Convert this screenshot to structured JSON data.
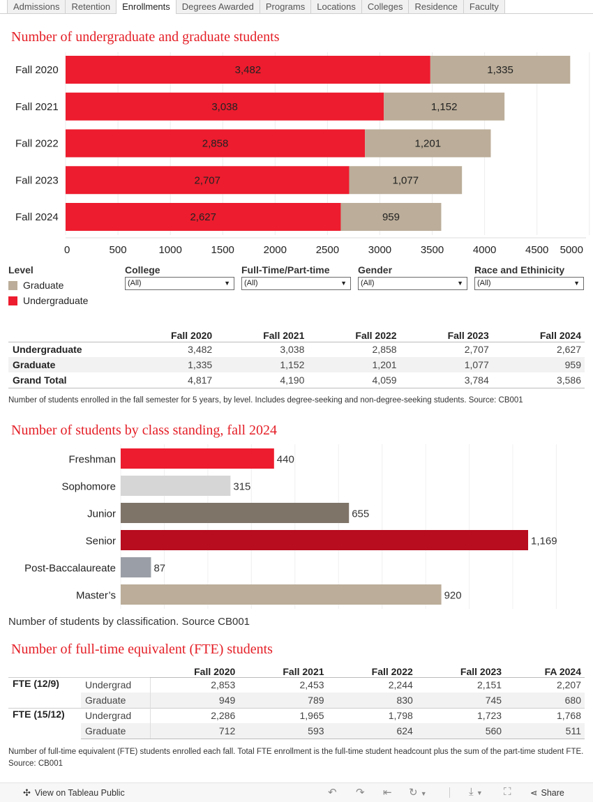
{
  "tabs": [
    {
      "label": "Admissions"
    },
    {
      "label": "Retention"
    },
    {
      "label": "Enrollments",
      "active": true
    },
    {
      "label": "Degrees Awarded"
    },
    {
      "label": "Programs"
    },
    {
      "label": "Locations"
    },
    {
      "label": "Colleges"
    },
    {
      "label": "Residence"
    },
    {
      "label": "Faculty"
    }
  ],
  "colors": {
    "accent": "#e41e26",
    "undergraduate": "#ed1c2e",
    "graduate": "#bbad99",
    "freshman": "#ed1c2e",
    "sophomore": "#d6d6d6",
    "junior": "#7f7468",
    "senior": "#b80c1f",
    "post_bacc": "#9a9ea6",
    "masters": "#bbad99"
  },
  "chart1": {
    "title": "Number of undergraduate and graduate students"
  },
  "legend": {
    "title": "Level",
    "items": [
      {
        "label": "Graduate",
        "color": "#bbad99"
      },
      {
        "label": "Undergraduate",
        "color": "#ed1c2e"
      }
    ]
  },
  "filters": [
    {
      "label": "College",
      "value": "(All)"
    },
    {
      "label": "Full-Time/Part-time",
      "value": "(All)"
    },
    {
      "label": "Gender",
      "value": "(All)"
    },
    {
      "label": "Race and Ethinicity",
      "value": "(All)"
    }
  ],
  "table1": {
    "columns": [
      "Fall 2020",
      "Fall 2021",
      "Fall 2022",
      "Fall 2023",
      "Fall 2024"
    ],
    "rows": [
      {
        "label": "Undergraduate",
        "values": [
          "3,482",
          "3,038",
          "2,858",
          "2,707",
          "2,627"
        ]
      },
      {
        "label": "Graduate",
        "values": [
          "1,335",
          "1,152",
          "1,201",
          "1,077",
          "959"
        ]
      },
      {
        "label": "Grand Total",
        "values": [
          "4,817",
          "4,190",
          "4,059",
          "3,784",
          "3,586"
        ]
      }
    ],
    "note": "Number of students enrolled in the fall semester for 5 years, by level. Includes degree-seeking and non-degree-seeking students. Source: CB001"
  },
  "chart2": {
    "title": "Number of students by class standing, fall 2024",
    "note": "Number of students by classification. Source CB001"
  },
  "chart3": {
    "title": "Number of full-time equivalent (FTE) students"
  },
  "table2": {
    "columns": [
      "Fall 2020",
      "Fall 2021",
      "Fall 2022",
      "Fall 2023",
      "FA 2024"
    ],
    "groups": [
      {
        "label": "FTE (12/9)",
        "rows": [
          {
            "label": "Undergrad",
            "values": [
              "2,853",
              "2,453",
              "2,244",
              "2,151",
              "2,207"
            ]
          },
          {
            "label": "Graduate",
            "values": [
              "949",
              "789",
              "830",
              "745",
              "680"
            ]
          }
        ]
      },
      {
        "label": "FTE (15/12)",
        "rows": [
          {
            "label": "Undergrad",
            "values": [
              "2,286",
              "1,965",
              "1,798",
              "1,723",
              "1,768"
            ]
          },
          {
            "label": "Graduate",
            "values": [
              "712",
              "593",
              "624",
              "560",
              "511"
            ]
          }
        ]
      }
    ],
    "note": "Number of full-time equivalent (FTE) students enrolled each fall. Total FTE enrollment is the full-time student headcount plus the sum of the part-time student FTE. Source: CB001"
  },
  "footer": {
    "view_label": "View on Tableau Public",
    "share_label": "Share",
    "icons": [
      "undo-icon",
      "redo-icon",
      "revert-icon",
      "refresh-icon",
      "download-icon",
      "fullscreen-icon",
      "share-icon"
    ]
  },
  "chart_data": [
    {
      "type": "bar",
      "orientation": "horizontal",
      "stacked": true,
      "title": "Number of undergraduate and graduate students",
      "categories": [
        "Fall 2020",
        "Fall 2021",
        "Fall 2022",
        "Fall 2023",
        "Fall 2024"
      ],
      "series": [
        {
          "name": "Undergraduate",
          "values": [
            3482,
            3038,
            2858,
            2707,
            2627
          ],
          "labels": [
            "3,482",
            "3,038",
            "2,858",
            "2,707",
            "2,627"
          ]
        },
        {
          "name": "Graduate",
          "values": [
            1335,
            1152,
            1201,
            1077,
            959
          ],
          "labels": [
            "1,335",
            "1,152",
            "1,201",
            "1,077",
            "959"
          ]
        }
      ],
      "xlim": [
        0,
        5000
      ],
      "xticks": [
        "0",
        "500",
        "1000",
        "1500",
        "2000",
        "2500",
        "3000",
        "3500",
        "4000",
        "4500",
        "5000"
      ],
      "grid": true,
      "legend_position": "bottom-left"
    },
    {
      "type": "bar",
      "orientation": "horizontal",
      "title": "Number of students by class standing, fall 2024",
      "categories": [
        "Freshman",
        "Sophomore",
        "Junior",
        "Senior",
        "Post-Baccalaureate",
        "Master’s"
      ],
      "values": [
        440,
        315,
        655,
        1169,
        87,
        920
      ],
      "labels": [
        "440",
        "315",
        "655",
        "1,169",
        "87",
        "920"
      ],
      "xlim": [
        0,
        1260
      ],
      "grid": true
    }
  ]
}
